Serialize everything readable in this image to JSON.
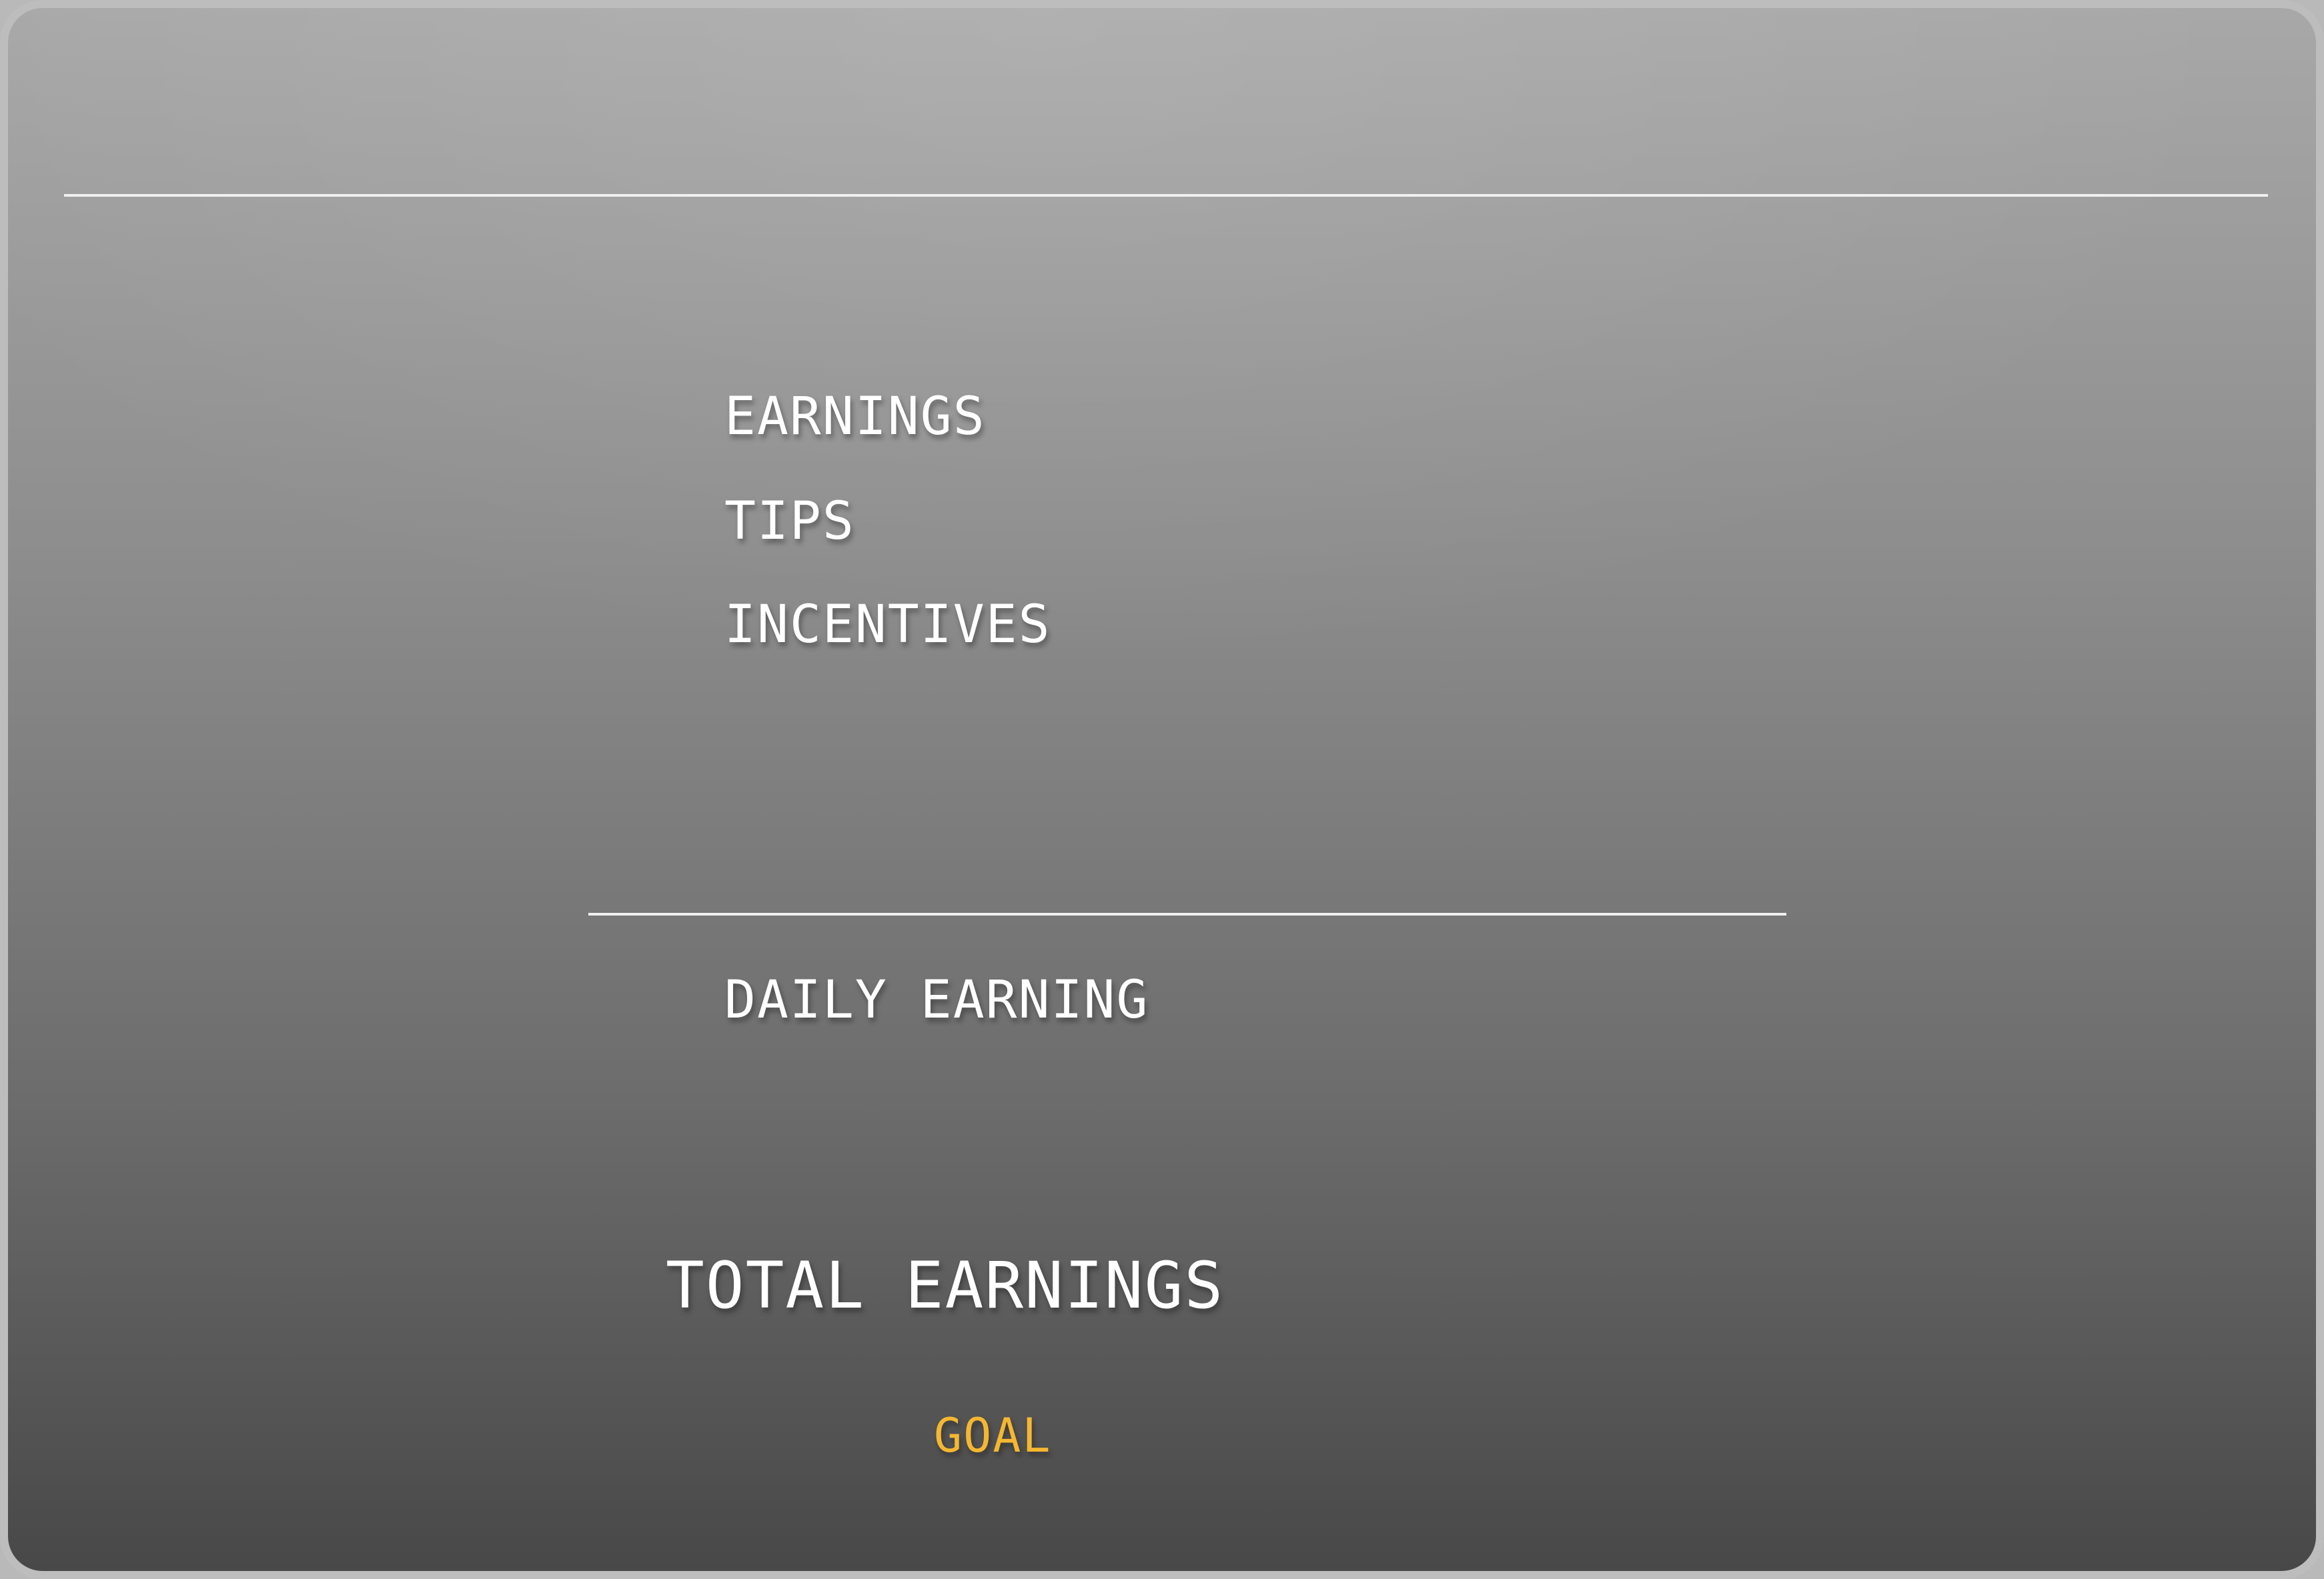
{
  "labels": {
    "earnings": "EARNINGS",
    "tips": "TIPS",
    "incentives": "INCENTIVES",
    "daily_earning": "DAILY EARNING",
    "total_earnings": "TOTAL EARNINGS",
    "goal": "GOAL"
  },
  "colors": {
    "text": "#ffffff",
    "accent_goal": "#f5b731",
    "divider": "#f0f0f0",
    "background_top": "#a8a8a8",
    "background_bottom": "#484848"
  }
}
